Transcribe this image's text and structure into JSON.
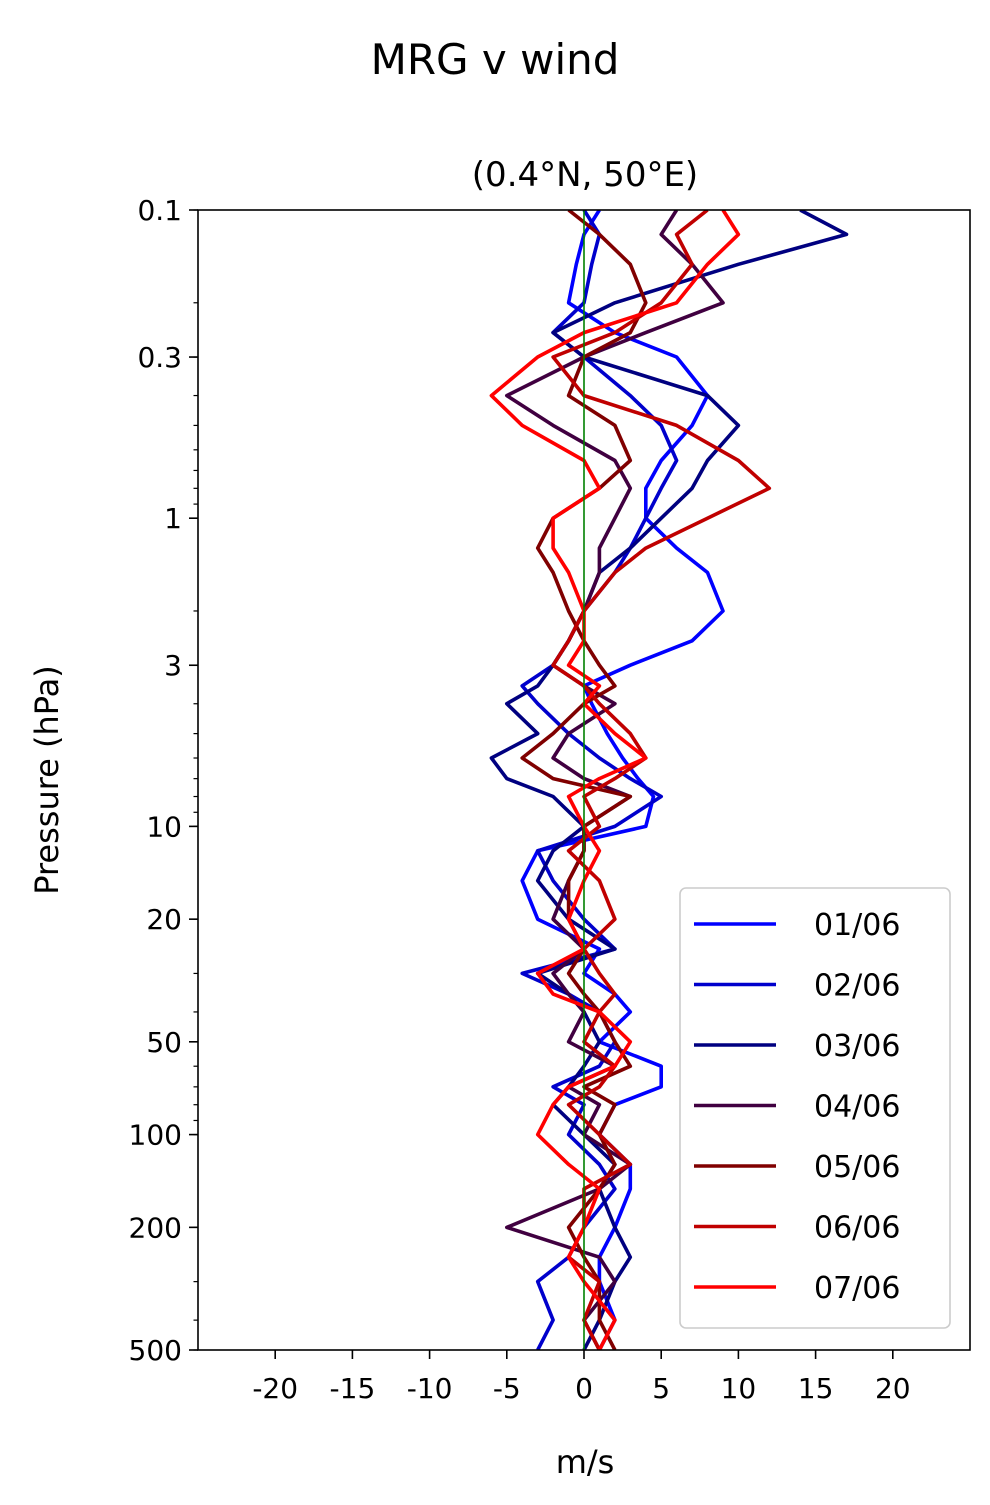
{
  "chart_data": {
    "type": "line",
    "suptitle": "MRG v wind",
    "title": "(0.4°N, 50°E)",
    "xlabel": "m/s",
    "ylabel": "Pressure (hPa)",
    "xlim": [
      -25,
      25
    ],
    "ylim": [
      500,
      0.1
    ],
    "y_scale": "log",
    "y_inverted": true,
    "x_ticks": [
      -20,
      -15,
      -10,
      -5,
      0,
      5,
      10,
      15,
      20
    ],
    "x_tick_labels": [
      "-20",
      "-15",
      "-10",
      "-5",
      "0",
      "5",
      "10",
      "15",
      "20"
    ],
    "y_ticks": [
      0.1,
      0.3,
      1,
      3,
      10,
      20,
      50,
      100,
      200,
      500
    ],
    "y_tick_labels": [
      "0.1",
      "0.3",
      "1",
      "3",
      "10",
      "20",
      "50",
      "100",
      "200",
      "500"
    ],
    "zero_line": {
      "x": 0,
      "color": "#008000"
    },
    "legend_position": "lower-right",
    "pressure_levels": [
      0.1,
      0.12,
      0.15,
      0.2,
      0.25,
      0.3,
      0.4,
      0.5,
      0.65,
      0.8,
      1,
      1.25,
      1.5,
      2,
      2.5,
      3,
      3.5,
      4,
      5,
      6,
      7,
      8,
      10,
      12,
      15,
      20,
      25,
      30,
      35,
      40,
      50,
      60,
      70,
      80,
      100,
      125,
      150,
      200,
      250,
      300,
      400,
      500
    ],
    "series": [
      {
        "name": "01/06",
        "color": "#0000ff",
        "values": [
          1,
          0,
          -0.5,
          -1,
          2,
          6,
          8,
          7,
          5,
          4,
          4,
          6,
          8,
          9,
          7,
          3,
          0,
          0.5,
          1.5,
          2.5,
          3.5,
          4.5,
          4,
          -3,
          -4,
          -3,
          1,
          0,
          2,
          3,
          1,
          5,
          5,
          2,
          1,
          3,
          3,
          2,
          1,
          1,
          2,
          1
        ]
      },
      {
        "name": "02/06",
        "color": "#0000cc",
        "values": [
          0,
          1,
          0.5,
          0,
          -2,
          0,
          3,
          5,
          6,
          5,
          4,
          3,
          2,
          0,
          -1,
          -2,
          -4,
          -3,
          -1,
          1,
          3,
          5,
          2,
          -3,
          -2,
          0,
          2,
          -4,
          -1,
          1,
          2,
          1,
          -2,
          0,
          -1,
          1,
          2,
          0,
          -1,
          -3,
          -2,
          -3
        ]
      },
      {
        "name": "03/06",
        "color": "#000080",
        "values": [
          14,
          17,
          10,
          2,
          -2,
          0,
          8,
          10,
          8,
          7,
          5,
          3,
          1,
          0,
          -1,
          -2,
          -3,
          -5,
          -3,
          -6,
          -5,
          -2,
          0,
          -2,
          -3,
          -1,
          2,
          -3,
          -1,
          0,
          1,
          0,
          -1,
          -2,
          0,
          2,
          1,
          2,
          3,
          2,
          1,
          0
        ]
      },
      {
        "name": "04/06",
        "color": "#400040",
        "values": [
          6,
          5,
          7,
          9,
          4,
          0,
          -5,
          -2,
          2,
          3,
          2,
          1,
          1,
          0,
          -1,
          -2,
          0,
          2,
          -1,
          -2,
          0,
          3,
          0,
          0,
          -1,
          -2,
          0,
          -2,
          -1,
          0,
          -1,
          2,
          -1,
          1,
          0,
          3,
          1,
          -5,
          1,
          2,
          0,
          1
        ]
      },
      {
        "name": "05/06",
        "color": "#800000",
        "values": [
          -1,
          1,
          3,
          4,
          3,
          0,
          -1,
          2,
          3,
          1,
          -2,
          -3,
          -2,
          -1,
          0,
          1,
          2,
          0,
          -2,
          -4,
          -2,
          3,
          0,
          0,
          -1,
          -1,
          0,
          -1,
          0,
          1,
          2,
          3,
          0,
          2,
          1,
          2,
          1,
          -1,
          0,
          1,
          1,
          2
        ]
      },
      {
        "name": "06/06",
        "color": "#c00000",
        "values": [
          8,
          6,
          7,
          5,
          2,
          -2,
          0,
          6,
          10,
          12,
          8,
          4,
          2,
          0,
          -1,
          -2,
          0,
          1,
          3,
          4,
          2,
          0,
          1,
          -1,
          1,
          2,
          0,
          1,
          2,
          1,
          0,
          2,
          1,
          -1,
          1,
          3,
          0,
          0,
          -1,
          1,
          0,
          1
        ]
      },
      {
        "name": "07/06",
        "color": "#ff0000",
        "values": [
          9,
          10,
          8,
          6,
          0,
          -3,
          -6,
          -4,
          0,
          1,
          -2,
          -2,
          -1,
          0,
          0,
          -1,
          1,
          0,
          2,
          4,
          1,
          -1,
          0,
          1,
          0,
          -1,
          0,
          -3,
          -2,
          1,
          3,
          2,
          -1,
          -2,
          -3,
          -1,
          1,
          0,
          -1,
          0,
          2,
          1
        ]
      }
    ]
  }
}
